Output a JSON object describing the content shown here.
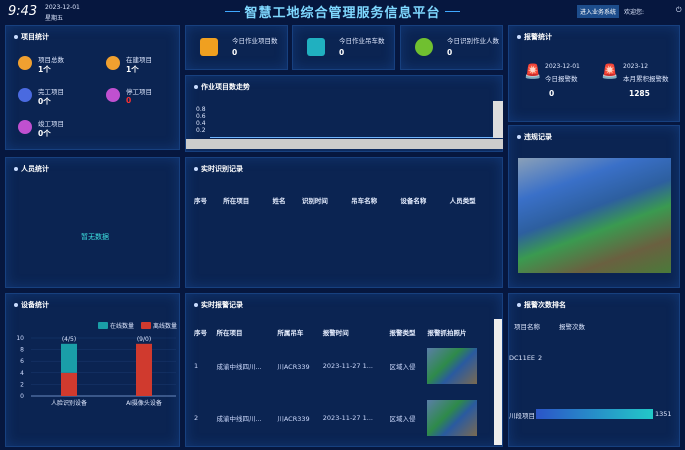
{
  "header": {
    "time": "9:43",
    "date": "2023-12-01",
    "weekday": "星期五",
    "title": "智慧工地综合管理服务信息平台",
    "enter_button": "进入业务系统",
    "welcome": "欢迎您:"
  },
  "project_stats": {
    "title": "项目统计",
    "items": [
      {
        "label": "项目总数",
        "value": "1个",
        "color": "#f0a030",
        "icon": "folder-icon"
      },
      {
        "label": "在建项目",
        "value": "1个",
        "color": "#f0a030",
        "icon": "building-icon"
      },
      {
        "label": "完工项目",
        "value": "0个",
        "color": "#4a6ae0",
        "icon": "check-icon"
      },
      {
        "label": "停工项目",
        "value": "0",
        "color": "#c050d0",
        "icon": "pause-icon"
      },
      {
        "label": "竣工项目",
        "value": "0个",
        "color": "#c050d0",
        "icon": "flag-icon"
      }
    ]
  },
  "today": {
    "cards": [
      {
        "label": "今日作业项目数",
        "value": "0",
        "icon": "layers-icon"
      },
      {
        "label": "今日作业吊车数",
        "value": "0",
        "icon": "crane-truck-icon"
      },
      {
        "label": "今日识别作业人数",
        "value": "0",
        "icon": "person-icon"
      }
    ]
  },
  "trend": {
    "title": "作业项目数走势",
    "yticks": [
      "0.8",
      "0.6",
      "0.4",
      "0.2"
    ]
  },
  "personnel": {
    "title": "人员统计",
    "empty": "暂无数据"
  },
  "recognition": {
    "title": "实时识别记录",
    "columns": [
      "序号",
      "所在项目",
      "姓名",
      "识别时间",
      "吊车名称",
      "设备名称",
      "人员类型"
    ]
  },
  "alarm_stats": {
    "title": "报警统计",
    "today_date": "2023-12-01",
    "today_label": "今日报警数",
    "today_value": "0",
    "month_date": "2023-12",
    "month_label": "本月累积报警数",
    "month_value": "1285"
  },
  "snapshot": {
    "title": "违规记录"
  },
  "device_chart": {
    "title": "设备统计",
    "chart_data": {
      "type": "bar",
      "stacked": true,
      "categories": [
        "人脸识别设备",
        "AI摄像头设备"
      ],
      "data_labels": [
        "(4/5)",
        "(9/0)"
      ],
      "series": [
        {
          "name": "在线数量",
          "values": [
            5,
            0
          ],
          "color": "#1a9ea8"
        },
        {
          "name": "离线数量",
          "values": [
            4,
            9
          ],
          "color": "#d03a2e"
        }
      ],
      "ylim": [
        0,
        10
      ],
      "yticks": [
        0,
        2,
        4,
        6,
        8,
        10
      ],
      "legend": "top-right"
    }
  },
  "alarm_records": {
    "title": "实时报警记录",
    "columns": [
      "序号",
      "所在项目",
      "所属吊车",
      "报警时间",
      "报警类型",
      "报警抓拍照片"
    ],
    "rows": [
      [
        "1",
        "成渝中线四川...",
        "川ACR339",
        "2023-11-27 1...",
        "区域入侵"
      ],
      [
        "2",
        "成渝中线四川...",
        "川ACR339",
        "2023-11-27 1...",
        "区域入侵"
      ]
    ]
  },
  "ranking": {
    "title": "报警次数排名",
    "col1": "项目名称",
    "col2": "报警次数",
    "items": [
      {
        "name": "DC11EE",
        "value": "2"
      },
      {
        "name": "川段项目",
        "value": "1351"
      }
    ]
  }
}
